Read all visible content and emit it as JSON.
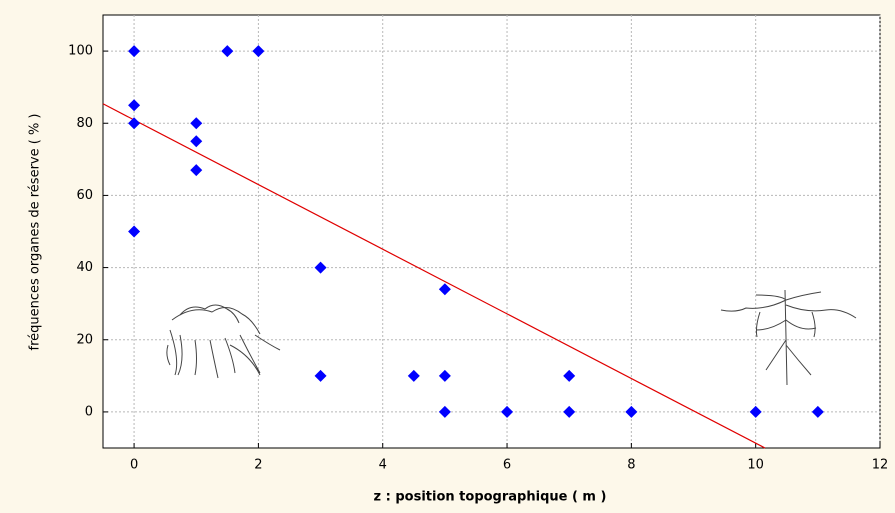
{
  "chart_data": {
    "type": "scatter",
    "xlabel": "z : position topographique ( m )",
    "ylabel": "fréquences organes de réserve ( % )",
    "x": [
      0,
      1.5,
      2,
      0,
      0,
      1,
      1,
      1,
      0,
      3,
      5,
      3,
      4.5,
      5,
      7,
      5,
      6,
      7,
      8,
      10,
      11
    ],
    "values": [
      100,
      100,
      100,
      85,
      80,
      80,
      75,
      67,
      50,
      40,
      34,
      10,
      10,
      10,
      10,
      0,
      0,
      0,
      0,
      0,
      0
    ],
    "color": "#0000ff",
    "trend_line": {
      "x": [
        -0.5,
        10.15
      ],
      "y": [
        85.4,
        -10
      ],
      "color": "#e00000"
    },
    "xlim": [
      -0.5,
      12
    ],
    "ylim": [
      -10,
      110
    ],
    "xticks": [
      0,
      2,
      4,
      6,
      8,
      10,
      12
    ],
    "yticks": [
      0,
      20,
      40,
      60,
      80,
      100
    ],
    "grid": true
  }
}
